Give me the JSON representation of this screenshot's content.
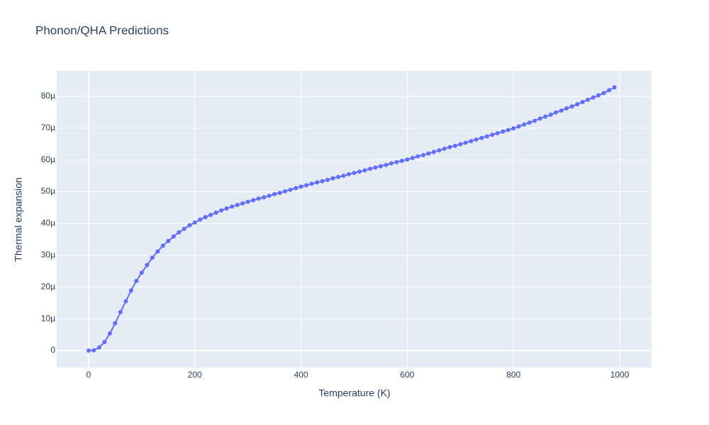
{
  "chart_data": {
    "type": "line",
    "title": "Phonon/QHA Predictions",
    "x_label": "Temperature (K)",
    "y_label": "Thermal expansion",
    "xlim": [
      -60,
      1060
    ],
    "ylim": [
      -5.35e-06,
      8.8e-05
    ],
    "xticks": [
      0,
      200,
      400,
      600,
      800,
      1000
    ],
    "yticks": [
      0,
      {
        "value": 1e-05,
        "label": "10µ"
      },
      {
        "value": 2e-05,
        "label": "20µ"
      },
      {
        "value": 3e-05,
        "label": "30µ"
      },
      {
        "value": 4e-05,
        "label": "40µ"
      },
      {
        "value": 5e-05,
        "label": "50µ"
      },
      {
        "value": 6e-05,
        "label": "60µ"
      },
      {
        "value": 7e-05,
        "label": "70µ"
      },
      {
        "value": 8e-05,
        "label": "80µ"
      }
    ],
    "grid": true,
    "x": [
      0,
      10,
      20,
      30,
      40,
      50,
      60,
      70,
      80,
      90,
      100,
      110,
      120,
      130,
      140,
      150,
      160,
      170,
      180,
      190,
      200,
      210,
      220,
      230,
      240,
      250,
      260,
      270,
      280,
      290,
      300,
      310,
      320,
      330,
      340,
      350,
      360,
      370,
      380,
      390,
      400,
      410,
      420,
      430,
      440,
      450,
      460,
      470,
      480,
      490,
      500,
      510,
      520,
      530,
      540,
      550,
      560,
      570,
      580,
      590,
      600,
      610,
      620,
      630,
      640,
      650,
      660,
      670,
      680,
      690,
      700,
      710,
      720,
      730,
      740,
      750,
      760,
      770,
      780,
      790,
      800,
      810,
      820,
      830,
      840,
      850,
      860,
      870,
      880,
      890,
      900,
      910,
      920,
      930,
      940,
      950,
      960,
      970,
      980,
      990
    ],
    "series": [
      {
        "color": "#636efa",
        "values": [
          0,
          1e-07,
          1e-06,
          2.7e-06,
          5.4e-06,
          8.6e-06,
          1.21e-05,
          1.55e-05,
          1.89e-05,
          2.19e-05,
          2.45e-05,
          2.69e-05,
          2.92e-05,
          3.12e-05,
          3.3e-05,
          3.45e-05,
          3.59e-05,
          3.72e-05,
          3.83e-05,
          3.94e-05,
          4.03e-05,
          4.12e-05,
          4.2e-05,
          4.27e-05,
          4.34e-05,
          4.41e-05,
          4.47e-05,
          4.53e-05,
          4.58e-05,
          4.63e-05,
          4.68e-05,
          4.73e-05,
          4.78e-05,
          4.82e-05,
          4.87e-05,
          4.92e-05,
          4.96e-05,
          5.01e-05,
          5.06e-05,
          5.11e-05,
          5.16e-05,
          5.2e-05,
          5.25e-05,
          5.29e-05,
          5.33e-05,
          5.37e-05,
          5.42e-05,
          5.46e-05,
          5.5e-05,
          5.55e-05,
          5.59e-05,
          5.63e-05,
          5.67e-05,
          5.72e-05,
          5.76e-05,
          5.8e-05,
          5.84e-05,
          5.89e-05,
          5.93e-05,
          5.97e-05,
          6.01e-05,
          6.06e-05,
          6.11e-05,
          6.15e-05,
          6.2e-05,
          6.25e-05,
          6.3e-05,
          6.35e-05,
          6.4e-05,
          6.44e-05,
          6.49e-05,
          6.54e-05,
          6.59e-05,
          6.64e-05,
          6.69e-05,
          6.74e-05,
          6.79e-05,
          6.84e-05,
          6.89e-05,
          6.94e-05,
          6.99e-05,
          7.05e-05,
          7.11e-05,
          7.17e-05,
          7.23e-05,
          7.3e-05,
          7.36e-05,
          7.42e-05,
          7.49e-05,
          7.55e-05,
          7.62e-05,
          7.68e-05,
          7.75e-05,
          7.82e-05,
          7.89e-05,
          7.96e-05,
          8.03e-05,
          8.1e-05,
          8.19e-05,
          8.28e-05
        ]
      }
    ]
  }
}
